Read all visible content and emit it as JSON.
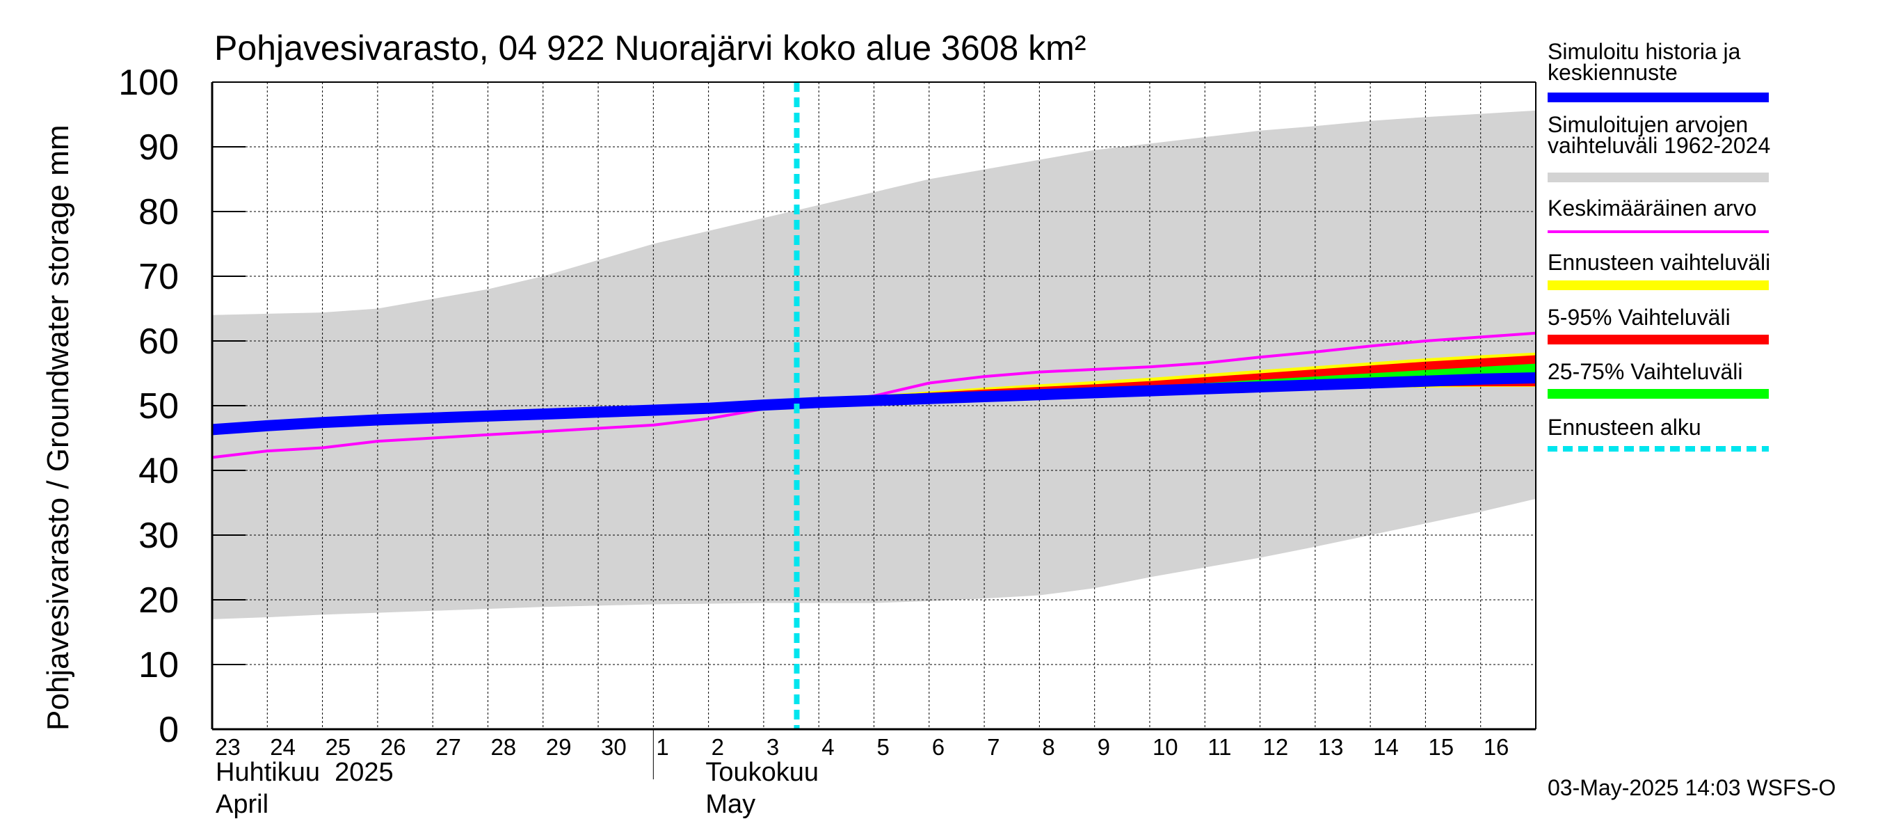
{
  "chart_data": {
    "type": "area",
    "title": "Pohjavesivarasto, 04 922 Nuorajärvi koko alue 3608 km²",
    "ylabel": "Pohjavesivarasto / Groundwater storage   mm",
    "ylim": [
      0,
      100
    ],
    "yticks": [
      0,
      10,
      20,
      30,
      40,
      50,
      60,
      70,
      80,
      90,
      100
    ],
    "x_days": [
      "23",
      "24",
      "25",
      "26",
      "27",
      "28",
      "29",
      "30",
      "1",
      "2",
      "3",
      "4",
      "5",
      "6",
      "7",
      "8",
      "9",
      "10",
      "11",
      "12",
      "13",
      "14",
      "15",
      "16"
    ],
    "x_start": "2025-04-23",
    "x_end": "2025-05-17",
    "month_labels": [
      {
        "fi": "Huhtikuu  2025",
        "en": "April"
      },
      {
        "fi": "Toukokuu",
        "en": "May"
      }
    ],
    "forecast_start": "2025-05-03",
    "footer": "03-May-2025 14:03 WSFS-O",
    "legend": [
      {
        "label": "Simuloitu historia ja keskiennuste",
        "color": "#0000ff",
        "style": "thick"
      },
      {
        "label": "Simuloitujen arvojen vaihteluväli 1962-2024",
        "color": "#d3d3d3",
        "style": "thick"
      },
      {
        "label": "Keskimääräinen arvo",
        "color": "#ff00ff",
        "style": "thin"
      },
      {
        "label": "Ennusteen vaihteluväli",
        "color": "#ffff00",
        "style": "thick"
      },
      {
        "label": "5-95% Vaihteluväli",
        "color": "#ff0000",
        "style": "thick"
      },
      {
        "label": "25-75% Vaihteluväli",
        "color": "#00ff00",
        "style": "thick"
      },
      {
        "label": "Ennusteen alku",
        "color": "#00e5ee",
        "style": "dashed"
      }
    ],
    "series": {
      "hist_range": {
        "name": "Simuloitujen arvojen vaihteluväli 1962-2024",
        "x": [
          0,
          1,
          2,
          3,
          4,
          5,
          6,
          7,
          8,
          9,
          10,
          11,
          12,
          13,
          14,
          15,
          16,
          17,
          18,
          19,
          20,
          21,
          22,
          23,
          24
        ],
        "upper": [
          64,
          64.2,
          64.4,
          65,
          66.5,
          68,
          70,
          72.5,
          75,
          77,
          79,
          81,
          83,
          85,
          86.5,
          88,
          89.5,
          90.5,
          91.5,
          92.5,
          93.2,
          94,
          94.6,
          95.1,
          95.6
        ],
        "lower": [
          17,
          17.3,
          17.7,
          18,
          18.3,
          18.6,
          18.9,
          19.1,
          19.3,
          19.4,
          19.5,
          19.5,
          19.5,
          19.8,
          20.2,
          20.7,
          21.8,
          23.5,
          25,
          26.5,
          28.2,
          30,
          31.8,
          33.6,
          35.6
        ]
      },
      "mean": {
        "name": "Keskimääräinen arvo",
        "x": [
          0,
          1,
          2,
          3,
          4,
          5,
          6,
          7,
          8,
          9,
          10,
          11,
          12,
          13,
          14,
          15,
          16,
          17,
          18,
          19,
          20,
          21,
          22,
          23,
          24
        ],
        "y": [
          42,
          43,
          43.5,
          44.5,
          45,
          45.5,
          46,
          46.5,
          47,
          48,
          49.5,
          50.5,
          51.5,
          53.5,
          54.5,
          55.2,
          55.6,
          56,
          56.6,
          57.5,
          58.3,
          59.2,
          60,
          60.6,
          61.2
        ]
      },
      "forecast_range": {
        "name": "Ennusteen vaihteluväli",
        "x": [
          10,
          11,
          12,
          13,
          14,
          15,
          16,
          17,
          18,
          19,
          20,
          21,
          22,
          23,
          24
        ],
        "upper": [
          50.3,
          51.0,
          51.6,
          52.2,
          52.8,
          53.3,
          53.8,
          54.3,
          54.9,
          55.5,
          56.1,
          56.7,
          57.3,
          57.8,
          58.2
        ],
        "lower": [
          50.2,
          50.5,
          50.8,
          51.0,
          51.3,
          51.6,
          51.9,
          52.2,
          52.4,
          52.6,
          52.7,
          52.8,
          52.8,
          52.9,
          52.9
        ]
      },
      "p5_95": {
        "name": "5-95% Vaihteluväli",
        "x": [
          10,
          11,
          12,
          13,
          14,
          15,
          16,
          17,
          18,
          19,
          20,
          21,
          22,
          23,
          24
        ],
        "upper": [
          50.3,
          51.0,
          51.5,
          52.0,
          52.5,
          52.9,
          53.3,
          53.8,
          54.4,
          55.0,
          55.6,
          56.2,
          56.8,
          57.3,
          57.8
        ],
        "lower": [
          50.2,
          50.5,
          50.8,
          51.0,
          51.3,
          51.6,
          51.9,
          52.2,
          52.4,
          52.6,
          52.8,
          52.9,
          53.0,
          53.0,
          53.0
        ]
      },
      "p25_75": {
        "name": "25-75% Vaihteluväli",
        "x": [
          10,
          11,
          12,
          13,
          14,
          15,
          16,
          17,
          18,
          19,
          20,
          21,
          22,
          23,
          24
        ],
        "upper": [
          50.2,
          50.8,
          51.2,
          51.6,
          52.0,
          52.4,
          52.8,
          53.1,
          53.5,
          54.0,
          54.5,
          55.0,
          55.5,
          56.0,
          56.5
        ],
        "lower": [
          50.2,
          50.6,
          50.9,
          51.1,
          51.4,
          51.7,
          51.9,
          52.2,
          52.5,
          52.8,
          53.1,
          53.3,
          53.5,
          53.7,
          54.0
        ]
      },
      "history": {
        "name": "Simuloitu historia ja keskiennuste",
        "x": [
          0,
          1,
          2,
          3,
          4,
          5,
          6,
          7,
          8,
          9,
          10,
          11,
          12,
          13,
          14,
          15,
          16,
          17,
          18,
          19,
          20,
          21,
          22,
          23,
          24
        ],
        "y": [
          46.3,
          46.9,
          47.4,
          47.8,
          48.1,
          48.4,
          48.7,
          49.0,
          49.3,
          49.6,
          50.1,
          50.5,
          50.8,
          51.1,
          51.4,
          51.7,
          52.0,
          52.3,
          52.6,
          52.9,
          53.2,
          53.5,
          53.8,
          54.1,
          54.3
        ]
      }
    }
  }
}
